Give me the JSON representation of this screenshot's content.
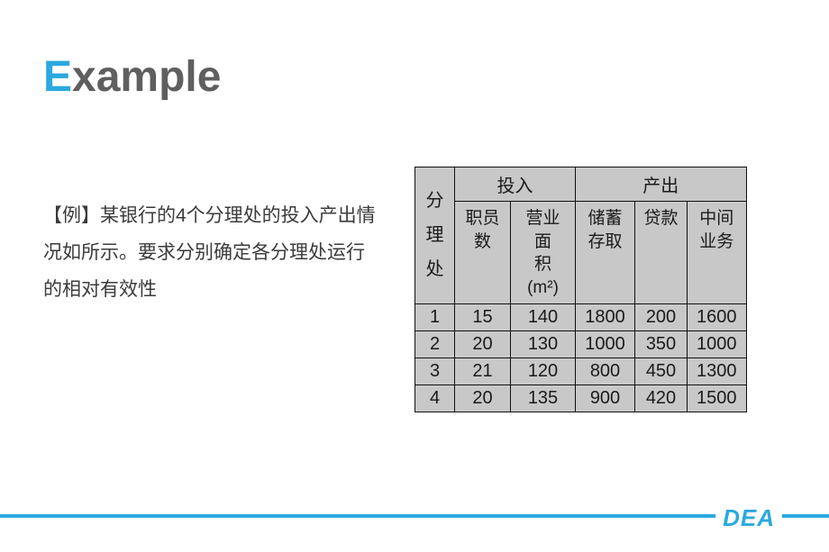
{
  "title": {
    "first": "E",
    "rest": "xample"
  },
  "paragraph": "【例】某银行的4个分理处的投入产出情况如所示。要求分别确定各分理处运行的相对有效性",
  "table": {
    "row_header": "分\n理\n处",
    "group_input": "投入",
    "group_output": "产出",
    "cols": {
      "employees": "职员数",
      "area_l1": "营业面",
      "area_l2": "积",
      "area_l3": "(m²)",
      "deposit_l1": "储蓄",
      "deposit_l2": "存取",
      "loan": "贷款",
      "inter_l1": "中间",
      "inter_l2": "业务"
    },
    "rows": [
      {
        "id": "1",
        "emp": "15",
        "area": "140",
        "dep": "1800",
        "loan": "200",
        "int": "1600"
      },
      {
        "id": "2",
        "emp": "20",
        "area": "130",
        "dep": "1000",
        "loan": "350",
        "int": "1000"
      },
      {
        "id": "3",
        "emp": "21",
        "area": "120",
        "dep": "800",
        "loan": "450",
        "int": "1300"
      },
      {
        "id": "4",
        "emp": "20",
        "area": "135",
        "dep": "900",
        "loan": "420",
        "int": "1500"
      }
    ]
  },
  "footer": "DEA",
  "colors": {
    "accent": "#2aa9e0",
    "title_gray": "#5f5f5f",
    "table_bg": "#c8c8c8",
    "border": "#111111",
    "text": "#3b3b3b"
  }
}
